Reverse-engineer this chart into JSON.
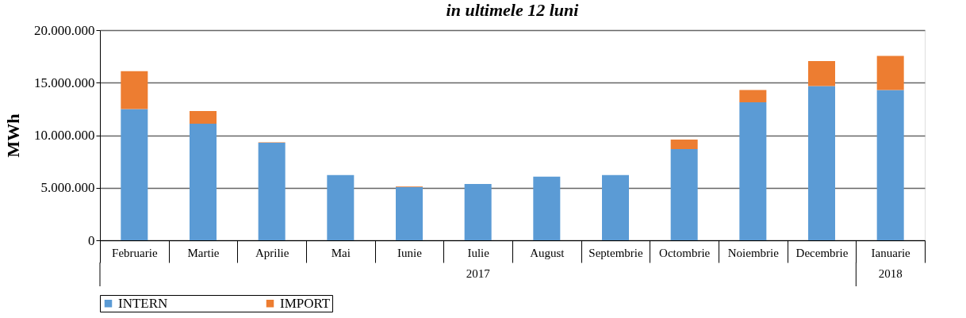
{
  "chart_data": {
    "type": "bar",
    "title": "in ultimele 12 luni",
    "ylabel": "MWh",
    "stacked": true,
    "categories": [
      "Februarie",
      "Martie",
      "Aprilie",
      "Mai",
      "Iunie",
      "Iulie",
      "August",
      "Septembrie",
      "Octombrie",
      "Noiembrie",
      "Decembrie",
      "Ianuarie"
    ],
    "series": [
      {
        "name": "INTERN",
        "color": "#5b9bd5",
        "values": [
          12500000,
          11100000,
          9280000,
          6200000,
          5070000,
          5350000,
          6060000,
          6200000,
          8680000,
          13130000,
          14680000,
          14310000
        ]
      },
      {
        "name": "IMPORT",
        "color": "#ed7d31",
        "values": [
          3600000,
          1200000,
          50000,
          null,
          70000,
          null,
          null,
          null,
          900000,
          1180000,
          2370000,
          3230000
        ]
      }
    ],
    "ylim": [
      0,
      20000000
    ],
    "yticks": [
      {
        "value": 0,
        "label": "0"
      },
      {
        "value": 5000000,
        "label": "5.000.000"
      },
      {
        "value": 10000000,
        "label": "10.000.000"
      },
      {
        "value": 15000000,
        "label": "15.000.000"
      },
      {
        "value": 20000000,
        "label": "20.000.000"
      }
    ],
    "grid": "y",
    "legend": "bottom",
    "annotations": [
      "2017",
      "2018"
    ]
  }
}
